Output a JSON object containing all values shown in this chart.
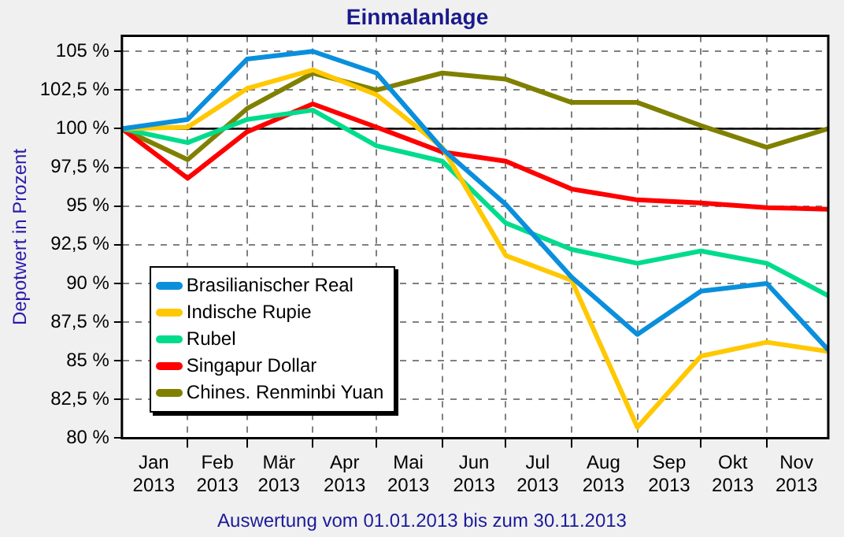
{
  "chart_data": {
    "type": "line",
    "title": "Einmalanlage",
    "ylabel": "Depotwert in Prozent",
    "annotations": [
      "Auswertung vom 01.01.2013 bis zum 30.11.2013"
    ],
    "x": [
      "2013-01-01",
      "2013-02-01",
      "2013-03-01",
      "2013-04-01",
      "2013-05-01",
      "2013-06-01",
      "2013-07-01",
      "2013-08-01",
      "2013-09-01",
      "2013-10-01",
      "2013-11-01",
      "2013-11-30"
    ],
    "series": [
      {
        "name": "Brasilianischer Real",
        "color": "#0a8fdc",
        "values": [
          100,
          100.6,
          104.5,
          105,
          103.6,
          98.7,
          95.1,
          90.4,
          86.7,
          89.5,
          90,
          85.7
        ]
      },
      {
        "name": "Indische Rupie",
        "color": "#ffc800",
        "values": [
          100,
          100.1,
          102.6,
          103.8,
          102.2,
          98.8,
          91.8,
          90.2,
          80.7,
          85.3,
          86.2,
          85.6
        ]
      },
      {
        "name": "Rubel",
        "color": "#00dc8c",
        "values": [
          100,
          99.1,
          100.6,
          101.2,
          98.9,
          97.9,
          93.9,
          92.2,
          91.3,
          92.1,
          91.3,
          89.2
        ]
      },
      {
        "name": "Singapur Dollar",
        "color": "#ff0000",
        "values": [
          100,
          96.8,
          99.8,
          101.6,
          100.1,
          98.5,
          97.9,
          96.1,
          95.4,
          95.2,
          94.9,
          94.8
        ]
      },
      {
        "name": "Chines. Renminbi Yuan",
        "color": "#808000",
        "values": [
          100,
          98,
          101.3,
          103.6,
          102.5,
          103.6,
          103.2,
          101.7,
          101.7,
          100.2,
          98.8,
          100
        ]
      }
    ],
    "xlim": [
      "2013-01-01",
      "2013-11-30"
    ],
    "xticks": [
      {
        "value": "2013-02-01",
        "label": null
      },
      {
        "value": "2013-03-01",
        "label": null
      },
      {
        "value": "2013-04-01",
        "label": null
      },
      {
        "value": "2013-05-01",
        "label": null
      },
      {
        "value": "2013-06-01",
        "label": null
      },
      {
        "value": "2013-07-01",
        "label": null
      },
      {
        "value": "2013-08-01",
        "label": null
      },
      {
        "value": "2013-09-01",
        "label": null
      },
      {
        "value": "2013-10-01",
        "label": null
      },
      {
        "value": "2013-11-01",
        "label": null
      },
      {
        "value": "2013-01-16",
        "label": "Jan 2013"
      },
      {
        "value": "2013-02-15",
        "label": "Feb 2013"
      },
      {
        "value": "2013-03-16",
        "label": "Mär 2013"
      },
      {
        "value": "2013-04-16",
        "label": "Apr 2013"
      },
      {
        "value": "2013-05-16",
        "label": "Mai 2013"
      },
      {
        "value": "2013-06-16",
        "label": "Jun 2013"
      },
      {
        "value": "2013-07-16",
        "label": "Jul 2013"
      },
      {
        "value": "2013-08-16",
        "label": "Aug 2013"
      },
      {
        "value": "2013-09-16",
        "label": "Sep 2013"
      },
      {
        "value": "2013-10-16",
        "label": "Okt 2013"
      },
      {
        "value": "2013-11-15",
        "label": "Nov 2013"
      }
    ],
    "ylim": [
      80,
      106
    ],
    "yticks": [
      {
        "value": 80,
        "label": "80 %"
      },
      {
        "value": 82.5,
        "label": "82,5 %"
      },
      {
        "value": 85,
        "label": "85 %"
      },
      {
        "value": 87.5,
        "label": "87,5 %"
      },
      {
        "value": 90,
        "label": "90 %"
      },
      {
        "value": 92.5,
        "label": "92,5 %"
      },
      {
        "value": 95,
        "label": "95 %"
      },
      {
        "value": 97.5,
        "label": "97,5 %"
      },
      {
        "value": 100,
        "label": "100 %"
      },
      {
        "value": 102.5,
        "label": "102,5 %"
      },
      {
        "value": 105,
        "label": "105 %"
      }
    ],
    "ref_lines": [
      {
        "axis": "y",
        "value": 100,
        "color": "#000000",
        "line_style": "solid"
      }
    ],
    "grid": true,
    "legend": "bottom left",
    "marker": "none",
    "line_style": "solid"
  }
}
